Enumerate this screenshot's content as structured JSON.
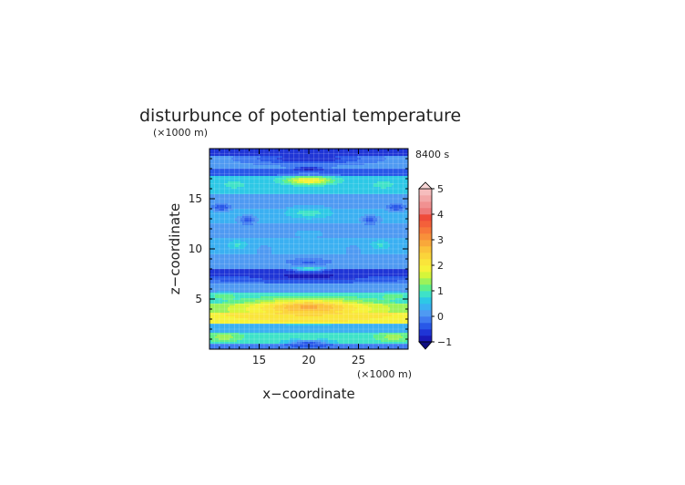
{
  "chart_data": {
    "type": "heatmap",
    "title": "disturbunce of potential temperature",
    "time_label": "8400 s",
    "xlabel": "x−coordinate",
    "ylabel": "z−coordinate",
    "x_unit": "(×1000 m)",
    "y_unit": "(×1000 m)",
    "xlim": [
      10,
      30
    ],
    "ylim": [
      0,
      20
    ],
    "x_ticks": [
      "15",
      "20",
      "25"
    ],
    "y_ticks": [
      "5",
      "10",
      "15"
    ],
    "grid": true,
    "legend": "right",
    "colorbar": {
      "min": -1,
      "max": 5,
      "step": 0.25,
      "labels": [
        "−1",
        "0",
        "1",
        "2",
        "3",
        "4",
        "5"
      ],
      "extend": "both"
    },
    "bands": [
      {
        "z_min": 0.0,
        "z_max": 0.6,
        "value": -0.2
      },
      {
        "z_min": 0.6,
        "z_max": 1.7,
        "value": 0.9
      },
      {
        "z_min": 1.7,
        "z_max": 2.5,
        "value": 0.3
      },
      {
        "z_min": 2.5,
        "z_max": 3.7,
        "value": 1.9
      },
      {
        "z_min": 3.7,
        "z_max": 4.6,
        "value": 1.1
      },
      {
        "z_min": 4.6,
        "z_max": 5.7,
        "value": 0.7
      },
      {
        "z_min": 5.7,
        "z_max": 6.5,
        "value": 0.1
      },
      {
        "z_min": 6.5,
        "z_max": 7.3,
        "value": -0.2
      },
      {
        "z_min": 7.3,
        "z_max": 8.0,
        "value": -0.6
      },
      {
        "z_min": 8.0,
        "z_max": 9.5,
        "value": 0.1
      },
      {
        "z_min": 9.5,
        "z_max": 11.0,
        "value": 0.3
      },
      {
        "z_min": 11.0,
        "z_max": 12.5,
        "value": 0.1
      },
      {
        "z_min": 12.5,
        "z_max": 14.0,
        "value": 0.4
      },
      {
        "z_min": 14.0,
        "z_max": 15.5,
        "value": 0.2
      },
      {
        "z_min": 15.5,
        "z_max": 17.2,
        "value": 0.6
      },
      {
        "z_min": 17.2,
        "z_max": 18.0,
        "value": -0.3
      },
      {
        "z_min": 18.0,
        "z_max": 19.2,
        "value": 0.2
      },
      {
        "z_min": 19.2,
        "z_max": 20.0,
        "value": -0.7
      }
    ],
    "features": [
      {
        "x": 20,
        "z": 16.8,
        "rx": 3.0,
        "rz": 0.5,
        "value": 2.0
      },
      {
        "x": 20,
        "z": 13.6,
        "rx": 2.4,
        "rz": 0.6,
        "value": 0.9
      },
      {
        "x": 20,
        "z": 11.5,
        "rx": 2.2,
        "rz": 0.6,
        "value": 0.4
      },
      {
        "x": 20,
        "z": 8.0,
        "rx": 1.8,
        "rz": 0.3,
        "value": 1.0
      },
      {
        "x": 20,
        "z": 4.0,
        "rx": 9.5,
        "rz": 1.3,
        "value": 2.4
      },
      {
        "x": 20,
        "z": 4.2,
        "rx": 3.5,
        "rz": 0.6,
        "value": 2.8
      },
      {
        "x": 20,
        "z": 19.0,
        "rx": 8.0,
        "rz": 0.8,
        "value": -0.7
      },
      {
        "x": 20,
        "z": 18.0,
        "rx": 2.0,
        "rz": 0.25,
        "value": -0.9
      },
      {
        "x": 20,
        "z": 7.2,
        "rx": 9.0,
        "rz": 0.5,
        "value": -0.8
      },
      {
        "x": 20,
        "z": 8.7,
        "rx": 2.5,
        "rz": 0.4,
        "value": -0.3
      },
      {
        "x": 20,
        "z": 0.7,
        "rx": 2.5,
        "rz": 0.5,
        "value": -0.6
      },
      {
        "x": 12.5,
        "z": 16.4,
        "rx": 1.5,
        "rz": 0.5,
        "value": 0.9
      },
      {
        "x": 27.5,
        "z": 16.4,
        "rx": 1.5,
        "rz": 0.5,
        "value": 0.9
      },
      {
        "x": 11.2,
        "z": 14.1,
        "rx": 1.2,
        "rz": 0.5,
        "value": -0.5
      },
      {
        "x": 28.8,
        "z": 14.1,
        "rx": 1.2,
        "rz": 0.5,
        "value": -0.5
      },
      {
        "x": 13.8,
        "z": 12.9,
        "rx": 1.2,
        "rz": 0.5,
        "value": -0.4
      },
      {
        "x": 26.2,
        "z": 12.9,
        "rx": 1.2,
        "rz": 0.5,
        "value": -0.4
      },
      {
        "x": 12.8,
        "z": 10.4,
        "rx": 1.3,
        "rz": 0.6,
        "value": 0.8
      },
      {
        "x": 27.2,
        "z": 10.4,
        "rx": 1.3,
        "rz": 0.6,
        "value": 0.8
      },
      {
        "x": 15.5,
        "z": 9.8,
        "rx": 1.2,
        "rz": 0.8,
        "value": 0.2
      },
      {
        "x": 24.5,
        "z": 9.8,
        "rx": 1.2,
        "rz": 0.8,
        "value": 0.2
      },
      {
        "x": 11.5,
        "z": 5.3,
        "rx": 1.5,
        "rz": 0.4,
        "value": 1.2
      },
      {
        "x": 28.5,
        "z": 5.3,
        "rx": 1.5,
        "rz": 0.4,
        "value": 1.2
      },
      {
        "x": 11.5,
        "z": 1.2,
        "rx": 2.0,
        "rz": 0.5,
        "value": 1.4
      },
      {
        "x": 28.5,
        "z": 1.2,
        "rx": 2.0,
        "rz": 0.5,
        "value": 1.4
      },
      {
        "x": 20,
        "z": 1.2,
        "rx": 3.0,
        "rz": 0.5,
        "value": 1.0
      }
    ]
  }
}
